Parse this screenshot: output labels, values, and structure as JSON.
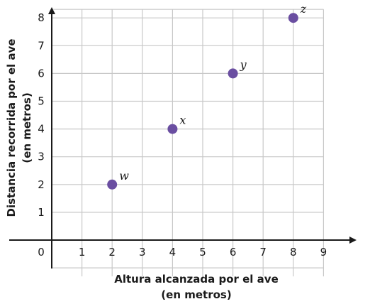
{
  "chart_data": {
    "type": "scatter",
    "title": "",
    "xlabel": [
      "Altura alcanzada por el ave",
      "(en metros)"
    ],
    "ylabel": [
      "Distancia recorrida por el ave",
      "(en metros)"
    ],
    "xlim": [
      0,
      9
    ],
    "ylim": [
      -1,
      8
    ],
    "xticks": [
      "0",
      "1",
      "2",
      "3",
      "4",
      "5",
      "6",
      "7",
      "8",
      "9"
    ],
    "yticks": [
      "1",
      "2",
      "3",
      "4",
      "5",
      "6",
      "7",
      "8"
    ],
    "grid": true,
    "series": [
      {
        "points": [
          {
            "label": "w",
            "x": 2,
            "y": 2
          },
          {
            "label": "x",
            "x": 4,
            "y": 4
          },
          {
            "label": "y",
            "x": 6,
            "y": 6
          },
          {
            "label": "z",
            "x": 8,
            "y": 8
          }
        ]
      }
    ],
    "colors": {
      "point": "#6a4ea1",
      "grid": "#c8c8c8",
      "axis": "#1a1a1a"
    }
  }
}
